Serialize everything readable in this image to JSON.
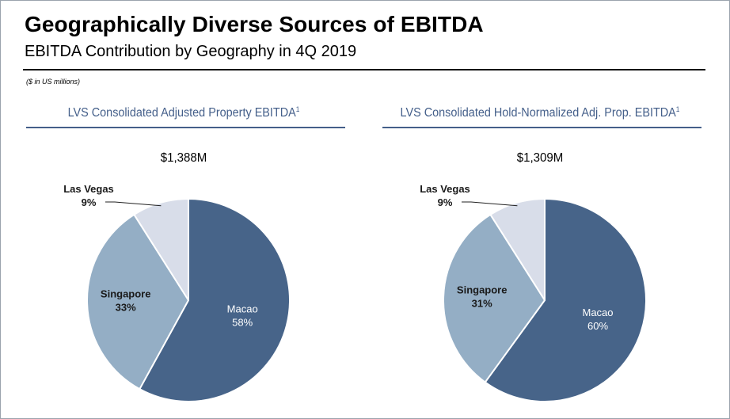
{
  "header": {
    "title": "Geographically Diverse Sources of EBITDA",
    "subtitle": "EBITDA Contribution by Geography in 4Q 2019",
    "note": "($ in US millions)"
  },
  "colors": {
    "macao": "#476489",
    "singapore": "#94aec5",
    "las_vegas": "#d8dde9",
    "accent": "#445f8a"
  },
  "chart_data": [
    {
      "type": "pie",
      "title": "LVS Consolidated Adjusted Property EBITDA",
      "title_footnote": "1",
      "total_label": "$1,388M",
      "slices": [
        {
          "label": "Macao",
          "value": 58,
          "value_label": "58%"
        },
        {
          "label": "Singapore",
          "value": 33,
          "value_label": "33%"
        },
        {
          "label": "Las Vegas",
          "value": 9,
          "value_label": "9%"
        }
      ]
    },
    {
      "type": "pie",
      "title": "LVS Consolidated Hold-Normalized Adj. Prop. EBITDA",
      "title_footnote": "1",
      "total_label": "$1,309M",
      "slices": [
        {
          "label": "Macao",
          "value": 60,
          "value_label": "60%"
        },
        {
          "label": "Singapore",
          "value": 31,
          "value_label": "31%"
        },
        {
          "label": "Las Vegas",
          "value": 9,
          "value_label": "9%"
        }
      ]
    }
  ]
}
